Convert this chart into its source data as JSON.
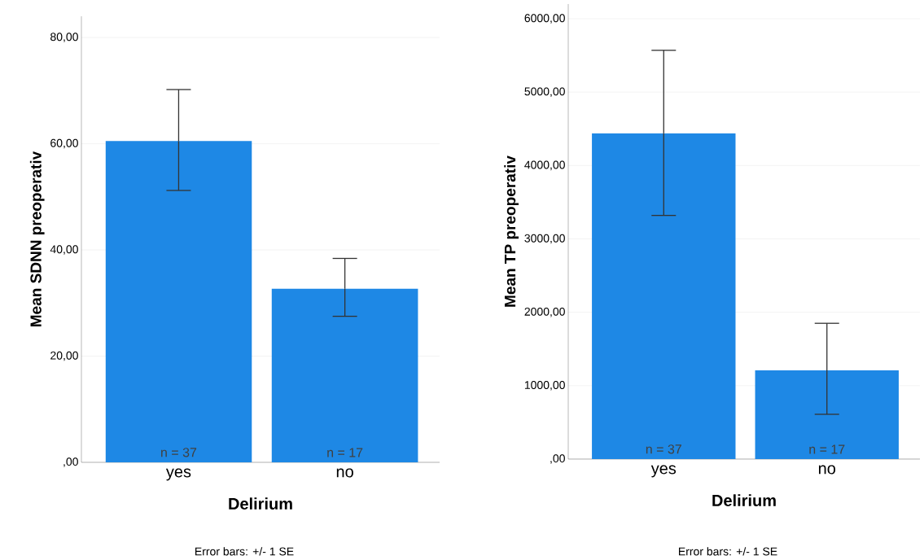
{
  "chart_data": [
    {
      "type": "bar",
      "categories": [
        "yes",
        "no"
      ],
      "values": [
        60.5,
        32.7
      ],
      "errors": [
        [
          51.2,
          70.2
        ],
        [
          27.5,
          38.4
        ]
      ],
      "color": "#1e88e5",
      "xlabel": "Delirium",
      "ylabel": "Mean SDNN preoperativ",
      "ylim": [
        0,
        84
      ],
      "yticks": [
        {
          "value": 0,
          "label": ",00"
        },
        {
          "value": 20,
          "label": "20,00"
        },
        {
          "value": 40,
          "label": "40,00"
        },
        {
          "value": 60,
          "label": "60,00"
        },
        {
          "value": 80,
          "label": "80,00"
        }
      ],
      "grid": "y",
      "annotations": [
        "n = 37",
        "n = 17",
        "Error bars: +/- 1 SE"
      ]
    },
    {
      "type": "bar",
      "categories": [
        "yes",
        "no"
      ],
      "values": [
        4440,
        1210
      ],
      "errors": [
        [
          3320,
          5570
        ],
        [
          610,
          1850
        ]
      ],
      "color": "#1e88e5",
      "xlabel": "Delirium",
      "ylabel": "Mean TP preoperativ",
      "ylim": [
        0,
        6200
      ],
      "yticks": [
        {
          "value": 0,
          "label": ",00"
        },
        {
          "value": 1000,
          "label": "1000,00"
        },
        {
          "value": 2000,
          "label": "2000,00"
        },
        {
          "value": 3000,
          "label": "3000,00"
        },
        {
          "value": 4000,
          "label": "4000,00"
        },
        {
          "value": 5000,
          "label": "5000,00"
        },
        {
          "value": 6000,
          "label": "6000,00"
        }
      ],
      "grid": "y",
      "annotations": [
        "n = 37",
        "n = 17",
        "Error bars: +/- 1 SE"
      ]
    }
  ]
}
